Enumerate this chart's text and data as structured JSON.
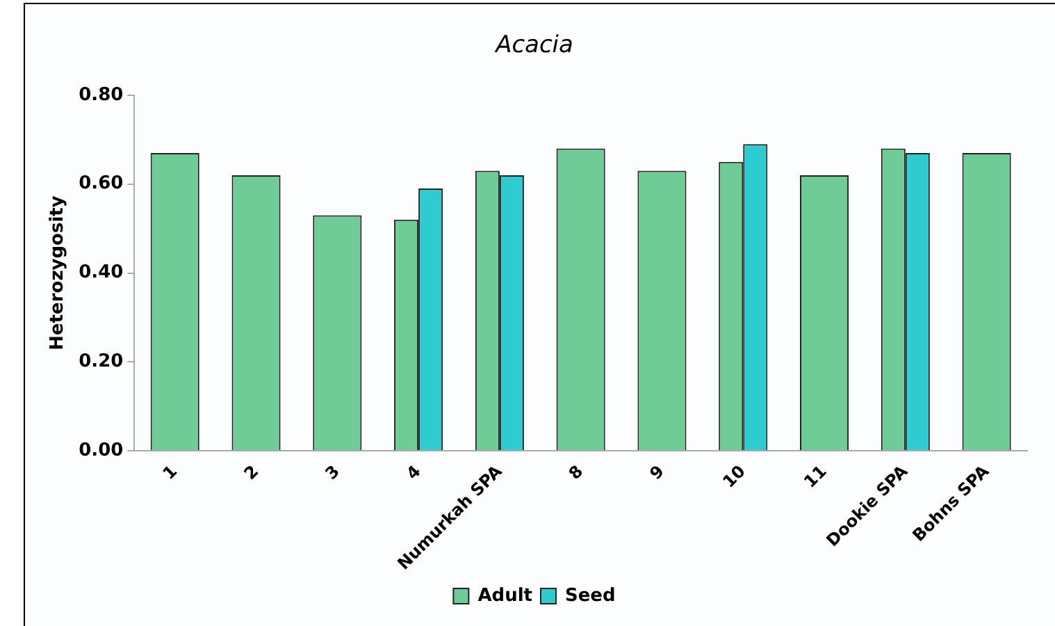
{
  "chart_data": {
    "type": "bar",
    "title": "Acacia",
    "ylabel": "Heterozygosity",
    "categories": [
      "1",
      "2",
      "3",
      "4",
      "Numurkah SPA",
      "8",
      "9",
      "10",
      "11",
      "Dookie SPA",
      "Bohns SPA"
    ],
    "series": [
      {
        "name": "Adult",
        "color": "#70cc96",
        "values": [
          0.67,
          0.62,
          0.53,
          0.52,
          0.63,
          0.68,
          0.63,
          0.65,
          0.62,
          0.68,
          0.67
        ]
      },
      {
        "name": "Seed",
        "color": "#2ecbd0",
        "values": [
          null,
          null,
          null,
          0.59,
          0.62,
          null,
          null,
          0.69,
          null,
          0.67,
          null
        ]
      }
    ],
    "ylim": [
      0,
      0.8
    ],
    "yticks": [
      {
        "value": 0,
        "label": "0.00"
      },
      {
        "value": 0.2,
        "label": "0.20"
      },
      {
        "value": 0.4,
        "label": "0.40"
      },
      {
        "value": 0.6,
        "label": "0.60"
      },
      {
        "value": 0.8,
        "label": "0.80"
      }
    ],
    "grid": false,
    "legend": "bottom"
  }
}
